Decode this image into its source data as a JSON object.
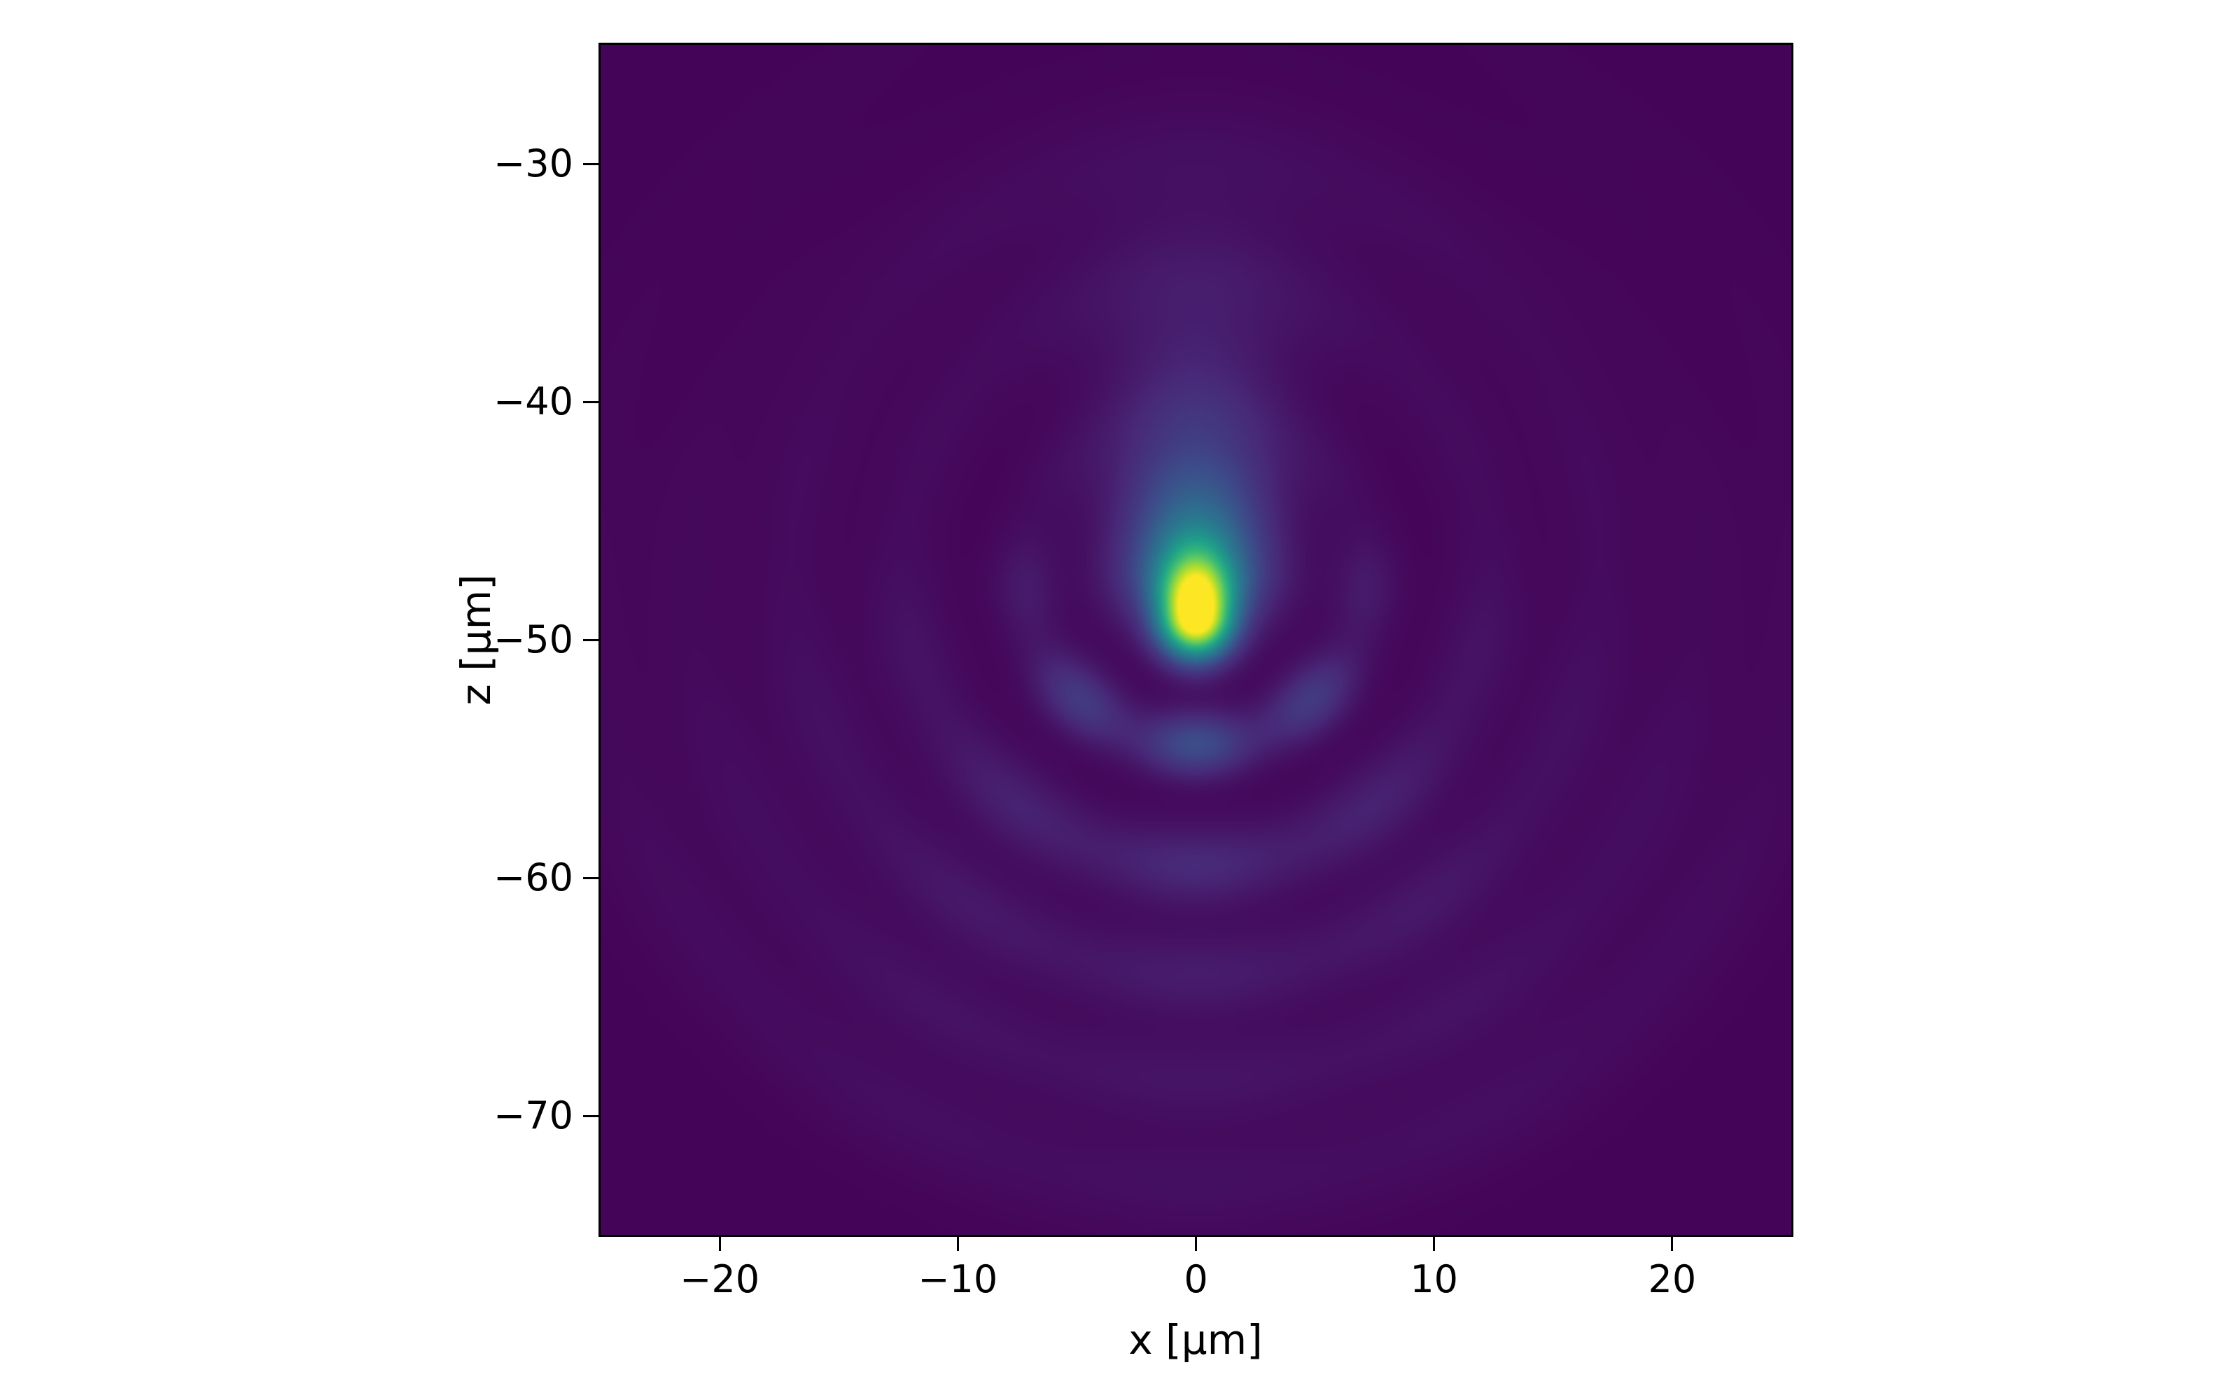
{
  "figure": {
    "background_color": "#ffffff",
    "spine_color": "#000000",
    "tick_color": "#000000",
    "text_color": "#000000"
  },
  "chart_data": {
    "type": "heatmap",
    "title": "",
    "xlabel": "x [μm]",
    "ylabel": "z [μm]",
    "xlim": [
      -25,
      25
    ],
    "ylim": [
      -75,
      -25
    ],
    "x_ticks": [
      -20,
      -10,
      0,
      10,
      20
    ],
    "x_tick_labels": [
      "−20",
      "−10",
      "0",
      "10",
      "20"
    ],
    "y_ticks": [
      -30,
      -40,
      -50,
      -60,
      -70
    ],
    "y_tick_labels": [
      "−30",
      "−40",
      "−50",
      "−60",
      "−70"
    ],
    "grid": false,
    "legend": null,
    "colorbar": null,
    "colormap": "viridis",
    "colormap_stops": [
      "#440154",
      "#482878",
      "#3e4989",
      "#31688e",
      "#26828e",
      "#1f9e89",
      "#35b779",
      "#6ece58",
      "#b5de2b",
      "#fde725"
    ],
    "description": "Normalized intensity of a focused beam in the x-z plane: bright elongated focal spot centered near (x=0, z=-49) um with a teal plume extending upward to about z=-41, a dark nodal gap below the focus, and a series of concentric diffraction arcs (aberration side lobes) curving below the focus near z=-54.5, -59.5, -64, -68.5 and -73 at x=0, fading with radius; very faint rings also appear above the focus.",
    "intensity_model": {
      "background_level": 0.012,
      "focus": {
        "x": 0,
        "z": -49.1
      },
      "lobes": [
        {
          "x": 0,
          "z": -49.1,
          "amp": 1.0,
          "sx": 1.45,
          "sz_up": 2.4,
          "sz_down": 1.6
        },
        {
          "x": 0,
          "z": -47.0,
          "amp": 0.42,
          "sx": 2.9,
          "sz_up": 3.8,
          "sz_down": 2.4
        },
        {
          "x": 0,
          "z": -42.5,
          "amp": 0.1,
          "sx": 3.4,
          "sz_up": 4.5,
          "sz_down": 2.5
        },
        {
          "x": 0,
          "z": -37.0,
          "amp": 0.045,
          "sx": 4.5,
          "sz_up": 6.0,
          "sz_down": 3.0
        }
      ],
      "ring_center": {
        "x": 0,
        "z": -47.2
      },
      "rings": [
        {
          "r": 7.2,
          "w": 1.35,
          "amp": 0.225,
          "spread": 1.3,
          "nodes": 8,
          "depth": 0.5,
          "dir": "down"
        },
        {
          "r": 12.3,
          "w": 1.7,
          "amp": 0.105,
          "spread": 1.3,
          "nodes": 9,
          "depth": 0.3,
          "dir": "down"
        },
        {
          "r": 16.9,
          "w": 1.8,
          "amp": 0.065,
          "spread": 1.35,
          "nodes": 10,
          "depth": 0.25,
          "dir": "down"
        },
        {
          "r": 21.3,
          "w": 1.9,
          "amp": 0.042,
          "spread": 1.4,
          "nodes": 11,
          "depth": 0.2,
          "dir": "down"
        },
        {
          "r": 25.7,
          "w": 2.1,
          "amp": 0.028,
          "spread": 1.45,
          "nodes": 12,
          "depth": 0.15,
          "dir": "down"
        },
        {
          "r": 6.8,
          "w": 1.8,
          "amp": 0.03,
          "spread": 1.0,
          "nodes": 0,
          "depth": 0.0,
          "dir": "up"
        },
        {
          "r": 12.5,
          "w": 2.0,
          "amp": 0.022,
          "spread": 1.1,
          "nodes": 0,
          "depth": 0.0,
          "dir": "up"
        },
        {
          "r": 17.5,
          "w": 2.2,
          "amp": 0.018,
          "spread": 1.2,
          "nodes": 0,
          "depth": 0.0,
          "dir": "up"
        }
      ]
    }
  }
}
